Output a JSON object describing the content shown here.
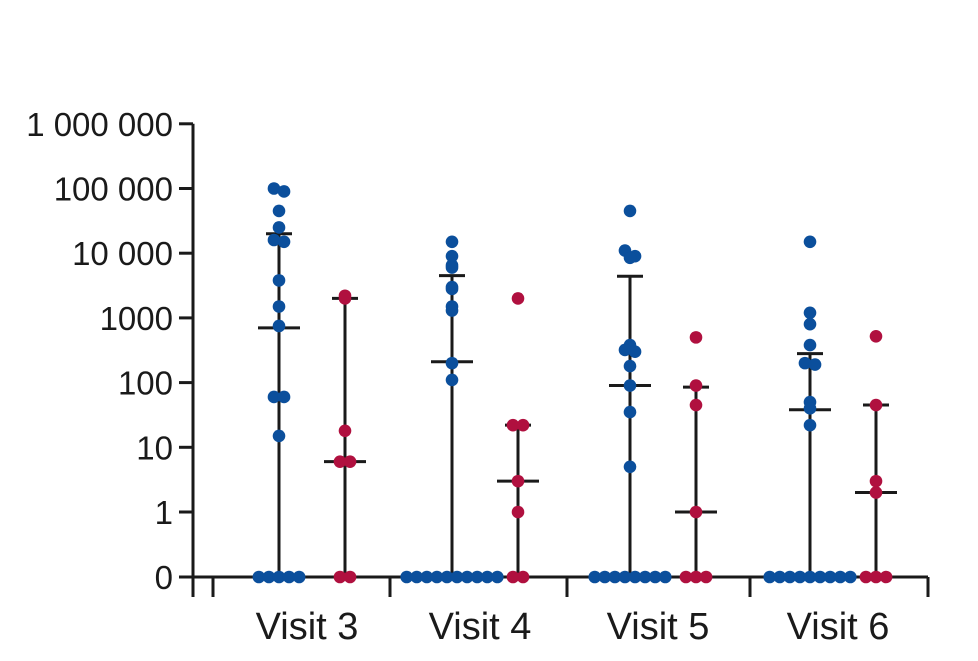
{
  "chart_data": {
    "type": "scatter",
    "y_scale": "log-with-zero",
    "y_ticks": [
      0,
      1,
      10,
      100,
      1000,
      10000,
      100000,
      1000000
    ],
    "y_tick_labels": [
      "0",
      "1",
      "10",
      "100",
      "1000",
      "10 000",
      "100 000",
      "1 000 000"
    ],
    "categories": [
      "Visit 3",
      "Visit 4",
      "Visit 5",
      "Visit 6"
    ],
    "colors": {
      "group_1": "#0b4f9c",
      "group_2": "#b0103f",
      "axis": "#1a1a1a"
    },
    "series": [
      {
        "color": "#0b4f9c",
        "groups": [
          {
            "category": "Visit 3",
            "points": [
              100000,
              90000,
              45000,
              25000,
              16000,
              15000,
              3800,
              1500,
              750,
              60,
              60,
              15,
              0,
              0,
              0,
              0,
              0
            ],
            "median": 700,
            "range": [
              0,
              20000
            ]
          },
          {
            "category": "Visit 4",
            "points": [
              15000,
              9000,
              6500,
              6000,
              3000,
              2800,
              1500,
              1300,
              200,
              110,
              0,
              0,
              0,
              0,
              0,
              0,
              0,
              0,
              0,
              0
            ],
            "median": 210,
            "range": [
              0,
              4500
            ]
          },
          {
            "category": "Visit 5",
            "points": [
              45000,
              11000,
              9000,
              8500,
              380,
              320,
              300,
              180,
              90,
              35,
              5,
              0,
              0,
              0,
              0,
              0,
              0,
              0,
              0
            ],
            "median": 90,
            "range": [
              0,
              4400
            ]
          },
          {
            "category": "Visit 6",
            "points": [
              15000,
              1200,
              800,
              380,
              200,
              190,
              50,
              40,
              22,
              0,
              0,
              0,
              0,
              0,
              0,
              0,
              0,
              0
            ],
            "median": 38,
            "range": [
              0,
              280
            ]
          }
        ]
      },
      {
        "color": "#b0103f",
        "groups": [
          {
            "category": "Visit 3",
            "points": [
              2200,
              2000,
              18,
              6,
              6,
              0,
              0
            ],
            "median": 6,
            "range": [
              0,
              2000
            ]
          },
          {
            "category": "Visit 4",
            "points": [
              2000,
              22,
              22,
              3,
              1,
              0,
              0
            ],
            "median": 3,
            "range": [
              0,
              22
            ]
          },
          {
            "category": "Visit 5",
            "points": [
              500,
              90,
              45,
              1,
              0,
              0,
              0
            ],
            "median": 1,
            "range": [
              0,
              85
            ]
          },
          {
            "category": "Visit 6",
            "points": [
              520,
              45,
              3,
              2,
              0,
              0,
              0
            ],
            "median": 2,
            "range": [
              0,
              45
            ]
          }
        ]
      }
    ]
  }
}
